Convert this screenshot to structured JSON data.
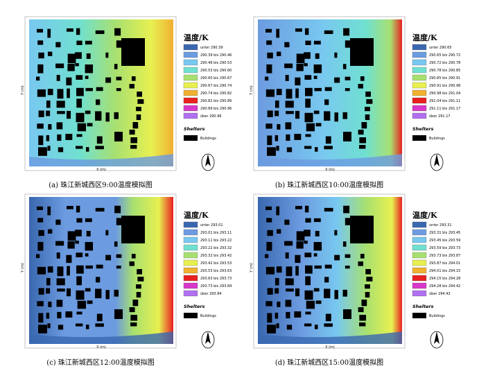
{
  "axis_labels": {
    "x": "X (m)",
    "y": "Y (m)"
  },
  "legend_title": "温度/K",
  "shelters_label": "Shelters",
  "buildings_label": "Buildings",
  "panels": [
    {
      "caption": "(a) 珠江新城西区9:00温度模拟图",
      "legend_items": [
        {
          "label": "unter 290.39",
          "color": "#3a68b0"
        },
        {
          "label": "290.39 bis 290.46",
          "color": "#6c9be0"
        },
        {
          "label": "290.46 bis 290.53",
          "color": "#78c8f0"
        },
        {
          "label": "290.53 bis 290.60",
          "color": "#70e0d0"
        },
        {
          "label": "290.60 bis 290.67",
          "color": "#a8e070"
        },
        {
          "label": "290.67 bis 290.74",
          "color": "#e8f050"
        },
        {
          "label": "290.74 bis 290.82",
          "color": "#f0b030"
        },
        {
          "label": "290.82 bis 290.89",
          "color": "#e82020"
        },
        {
          "label": "290.89 bis 290.96",
          "color": "#d838c8"
        },
        {
          "label": "über 290.96",
          "color": "#b070f0"
        }
      ]
    },
    {
      "caption": "(b) 珠江新城西区10:00温度模拟图",
      "legend_items": [
        {
          "label": "unter 290.65",
          "color": "#3a68b0"
        },
        {
          "label": "290.65 bis 290.72",
          "color": "#6c9be0"
        },
        {
          "label": "290.72 bis 290.78",
          "color": "#78c8f0"
        },
        {
          "label": "290.78 bis 290.85",
          "color": "#70e0d0"
        },
        {
          "label": "290.85 bis 290.91",
          "color": "#a8e070"
        },
        {
          "label": "290.91 bis 290.98",
          "color": "#e8f050"
        },
        {
          "label": "290.98 bis 291.04",
          "color": "#f0b030"
        },
        {
          "label": "291.04 bis 291.11",
          "color": "#e82020"
        },
        {
          "label": "291.11 bis 291.17",
          "color": "#d838c8"
        },
        {
          "label": "über 291.17",
          "color": "#b070f0"
        }
      ]
    },
    {
      "caption": "(c) 珠江新城西区12:00温度模拟图",
      "legend_items": [
        {
          "label": "unter 293.01",
          "color": "#3a68b0"
        },
        {
          "label": "293.01 bis 293.11",
          "color": "#6c9be0"
        },
        {
          "label": "293.11 bis 293.22",
          "color": "#78c8f0"
        },
        {
          "label": "293.22 bis 293.32",
          "color": "#70e0d0"
        },
        {
          "label": "293.32 bis 293.42",
          "color": "#a8e070"
        },
        {
          "label": "293.42 bis 293.53",
          "color": "#e8f050"
        },
        {
          "label": "293.53 bis 293.63",
          "color": "#f0b030"
        },
        {
          "label": "293.63 bis 293.73",
          "color": "#e82020"
        },
        {
          "label": "293.73 bis 293.84",
          "color": "#d838c8"
        },
        {
          "label": "über 293.84",
          "color": "#b070f0"
        }
      ]
    },
    {
      "caption": "(d) 珠江新城西区15:00温度模拟图",
      "legend_items": [
        {
          "label": "unter 293.31",
          "color": "#3a68b0"
        },
        {
          "label": "293.31 bis 293.45",
          "color": "#6c9be0"
        },
        {
          "label": "293.45 bis 293.59",
          "color": "#78c8f0"
        },
        {
          "label": "293.59 bis 293.73",
          "color": "#70e0d0"
        },
        {
          "label": "293.73 bis 293.87",
          "color": "#a8e070"
        },
        {
          "label": "293.87 bis 294.01",
          "color": "#e8f050"
        },
        {
          "label": "294.01 bis 294.15",
          "color": "#f0b030"
        },
        {
          "label": "294.15 bis 294.28",
          "color": "#e82020"
        },
        {
          "label": "294.28 bis 294.42",
          "color": "#d838c8"
        },
        {
          "label": "über 294.42",
          "color": "#b070f0"
        }
      ]
    }
  ]
}
